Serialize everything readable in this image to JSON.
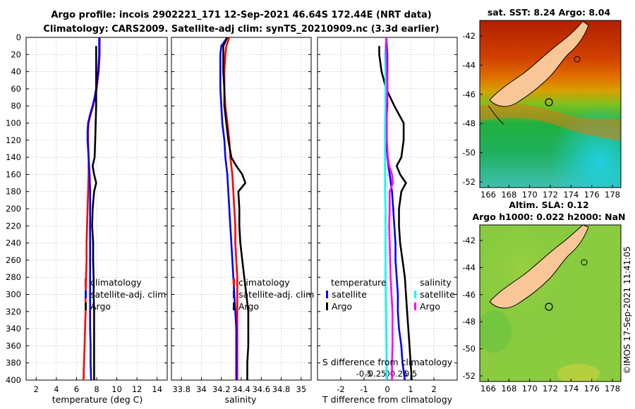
{
  "figure": {
    "title_line1": "Argo profile: incois 2902221_171 12-Sep-2021 46.64S 172.44E (NRT data)",
    "title_line2": "Climatology: CARS2009. Satellite-adj clim: synTS_20210909.nc (3.3d earlier)",
    "watermark": "©IMOS 17-Sep-2021 11:41:05"
  },
  "colors": {
    "climatology": "#ff0000",
    "satellite": "#0000ff",
    "argo": "#000000",
    "s_satellite": "#00ffff",
    "s_argo": "#ff00ff"
  },
  "depth_ticks": [
    "0",
    "20",
    "40",
    "60",
    "80",
    "100",
    "120",
    "140",
    "160",
    "180",
    "200",
    "220",
    "240",
    "260",
    "280",
    "300",
    "320",
    "340",
    "360",
    "380",
    "400"
  ],
  "chart_data": [
    {
      "type": "line",
      "id": "temperature",
      "xlabel": "temperature (deg C)",
      "ylabel": "",
      "xlim": [
        1,
        15
      ],
      "ylim": [
        400,
        0
      ],
      "xticks": [
        2,
        4,
        6,
        8,
        10,
        12,
        14
      ],
      "grid": true,
      "legend": [
        "climatology",
        "satellite-adj. clim",
        "Argo"
      ],
      "series": [
        {
          "name": "climatology",
          "color": "#ff0000",
          "depth": [
            0,
            10,
            20,
            30,
            40,
            50,
            60,
            70,
            80,
            90,
            100,
            110,
            120,
            140,
            160,
            180,
            200,
            220,
            240,
            260,
            280,
            300,
            320,
            340,
            360,
            380,
            400
          ],
          "values": [
            8.3,
            8.3,
            8.3,
            8.25,
            8.2,
            8.1,
            8.0,
            7.85,
            7.65,
            7.4,
            7.2,
            7.15,
            7.15,
            7.2,
            7.2,
            7.15,
            7.1,
            7.05,
            7.0,
            7.0,
            6.95,
            6.9,
            6.9,
            6.85,
            6.8,
            6.75,
            6.7
          ]
        },
        {
          "name": "satellite-adj. clim",
          "color": "#0000ff",
          "depth": [
            0,
            10,
            20,
            30,
            40,
            50,
            60,
            70,
            80,
            90,
            100,
            110,
            120,
            140,
            160,
            180,
            200,
            220,
            240,
            260,
            280,
            300,
            320,
            340,
            360,
            380,
            400
          ],
          "values": [
            8.25,
            8.25,
            8.25,
            8.2,
            8.15,
            8.05,
            7.95,
            7.8,
            7.6,
            7.35,
            7.15,
            7.1,
            7.1,
            7.2,
            7.3,
            7.35,
            7.35,
            7.35,
            7.35,
            7.35,
            7.35,
            7.35,
            7.35,
            7.35,
            7.4,
            7.4,
            7.45
          ]
        },
        {
          "name": "Argo",
          "color": "#000000",
          "depth": [
            10,
            20,
            40,
            60,
            80,
            100,
            120,
            140,
            150,
            160,
            170,
            180,
            200,
            220,
            240,
            260,
            280,
            300,
            320,
            340,
            360,
            380,
            400
          ],
          "values": [
            7.95,
            7.95,
            7.95,
            7.95,
            7.95,
            7.9,
            7.85,
            7.8,
            7.6,
            7.75,
            7.95,
            7.75,
            7.6,
            7.55,
            7.65,
            7.65,
            7.7,
            7.7,
            7.75,
            7.75,
            7.75,
            7.75,
            7.75
          ]
        }
      ]
    },
    {
      "type": "line",
      "id": "salinity",
      "xlabel": "salinity",
      "ylabel": "",
      "xlim": [
        33.7,
        35.1
      ],
      "ylim": [
        400,
        0
      ],
      "xticks": [
        33.8,
        34,
        34.2,
        34.4,
        34.6,
        34.8,
        35
      ],
      "xticklabels": [
        "33.8",
        "34",
        "34.2",
        "34.4",
        "34.6",
        "34.8",
        "35"
      ],
      "grid": true,
      "legend": [
        "climatology",
        "satellite-adj. clim",
        "Argo"
      ],
      "series": [
        {
          "name": "climatology",
          "color": "#ff0000",
          "depth": [
            0,
            10,
            20,
            40,
            60,
            80,
            100,
            120,
            140,
            160,
            180,
            200,
            220,
            240,
            260,
            280,
            300,
            320,
            340,
            360,
            380,
            400
          ],
          "values": [
            34.28,
            34.25,
            34.24,
            34.23,
            34.23,
            34.24,
            34.26,
            34.28,
            34.29,
            34.31,
            34.32,
            34.33,
            34.34,
            34.34,
            34.35,
            34.36,
            34.36,
            34.36,
            34.36,
            34.36,
            34.36,
            34.36
          ]
        },
        {
          "name": "satellite-adj. clim",
          "color": "#0000ff",
          "depth": [
            0,
            10,
            20,
            40,
            60,
            80,
            100,
            120,
            140,
            160,
            180,
            200,
            220,
            240,
            260,
            280,
            300,
            320,
            340,
            360,
            380,
            400
          ],
          "values": [
            34.26,
            34.2,
            34.19,
            34.19,
            34.19,
            34.2,
            34.21,
            34.23,
            34.24,
            34.26,
            34.27,
            34.28,
            34.29,
            34.3,
            34.31,
            34.32,
            34.33,
            34.34,
            34.35,
            34.35,
            34.35,
            34.35
          ]
        },
        {
          "name": "Argo",
          "color": "#000000",
          "depth": [
            0,
            10,
            20,
            40,
            60,
            80,
            100,
            120,
            140,
            150,
            160,
            170,
            180,
            200,
            220,
            240,
            260,
            280,
            300,
            320,
            340,
            360,
            380,
            400
          ],
          "values": [
            34.26,
            34.22,
            34.22,
            34.22,
            34.23,
            34.23,
            34.25,
            34.27,
            34.3,
            34.35,
            34.41,
            34.44,
            34.37,
            34.38,
            34.38,
            34.39,
            34.41,
            34.43,
            34.45,
            34.47,
            34.47,
            34.47,
            34.46,
            34.46
          ]
        }
      ]
    },
    {
      "type": "line",
      "id": "difference",
      "xlabel": "T difference from climatology",
      "xlabel_top": "S difference from climatology",
      "xlim": [
        -3,
        3
      ],
      "ylim": [
        400,
        0
      ],
      "xticks": [
        -2,
        -1,
        0,
        1,
        2
      ],
      "xticklabels": [
        "-2",
        "-1",
        "0",
        "1",
        "2"
      ],
      "s_ticks": [
        -0.5,
        -0.25,
        0,
        0.25,
        0.5
      ],
      "s_ticklabels": [
        "-0.5",
        "-0.25",
        "0",
        "0.25",
        "0.5"
      ],
      "grid": true,
      "legend_temperature_title": "temperature",
      "legend_salinity_title": "salinity",
      "legend": [
        "satellite",
        "Argo",
        "satellite",
        "Argo"
      ],
      "series": [
        {
          "name": "T satellite",
          "color": "#0000ff",
          "depth": [
            0,
            20,
            40,
            60,
            80,
            100,
            120,
            140,
            160,
            180,
            200,
            220,
            240,
            260,
            280,
            300,
            320,
            340,
            360,
            380,
            400
          ],
          "values": [
            -0.05,
            0.0,
            0.0,
            0.0,
            0.0,
            -0.05,
            -0.05,
            0.0,
            0.1,
            0.2,
            0.25,
            0.3,
            0.35,
            0.35,
            0.4,
            0.45,
            0.45,
            0.5,
            0.6,
            0.65,
            0.75
          ]
        },
        {
          "name": "T Argo",
          "color": "#000000",
          "depth": [
            10,
            20,
            40,
            60,
            80,
            90,
            100,
            120,
            140,
            150,
            160,
            170,
            180,
            200,
            220,
            240,
            260,
            280,
            300,
            320,
            340,
            360,
            380,
            400
          ],
          "values": [
            -0.35,
            -0.35,
            -0.25,
            -0.05,
            0.3,
            0.5,
            0.7,
            0.7,
            0.6,
            0.4,
            0.55,
            0.8,
            0.6,
            0.5,
            0.5,
            0.55,
            0.65,
            0.75,
            0.8,
            0.85,
            0.9,
            0.95,
            1.0,
            1.05
          ]
        },
        {
          "name": "S satellite",
          "color": "#00ffff",
          "depth": [
            0,
            20,
            40,
            60,
            80,
            100,
            120,
            140,
            160,
            180,
            200,
            240,
            280,
            320,
            360,
            400
          ],
          "values": [
            -0.02,
            -0.05,
            -0.04,
            -0.04,
            -0.04,
            -0.05,
            -0.05,
            -0.05,
            -0.05,
            -0.05,
            -0.04,
            -0.04,
            -0.04,
            -0.03,
            -0.02,
            -0.02
          ]
        },
        {
          "name": "S Argo",
          "color": "#ff00ff",
          "depth": [
            0,
            10,
            20,
            40,
            60,
            80,
            100,
            120,
            140,
            150,
            160,
            170,
            180,
            200,
            220,
            240,
            260,
            280,
            300,
            320,
            340,
            360,
            380,
            400
          ],
          "values": [
            -0.02,
            -0.03,
            -0.02,
            -0.01,
            0.0,
            -0.01,
            -0.01,
            -0.01,
            0.01,
            0.04,
            0.1,
            0.12,
            0.05,
            0.05,
            0.04,
            0.05,
            0.06,
            0.07,
            0.09,
            0.11,
            0.11,
            0.11,
            0.1,
            0.1
          ]
        }
      ]
    }
  ],
  "maps": {
    "sst": {
      "title": "sat. SST: 8.24 Argo: 8.04",
      "lat_ticks": [
        "-42",
        "-44",
        "-46",
        "-48",
        "-50",
        "-52"
      ],
      "lon_ticks": [
        "166",
        "168",
        "170",
        "172",
        "174",
        "176",
        "178"
      ]
    },
    "sla": {
      "title1": "Altim. SLA: 0.12",
      "title2": "Argo h1000: 0.022 h2000: NaN",
      "lat_ticks": [
        "-42",
        "-44",
        "-46",
        "-48",
        "-50",
        "-52"
      ],
      "lon_ticks": [
        "166",
        "168",
        "170",
        "172",
        "174",
        "176",
        "178"
      ]
    }
  }
}
